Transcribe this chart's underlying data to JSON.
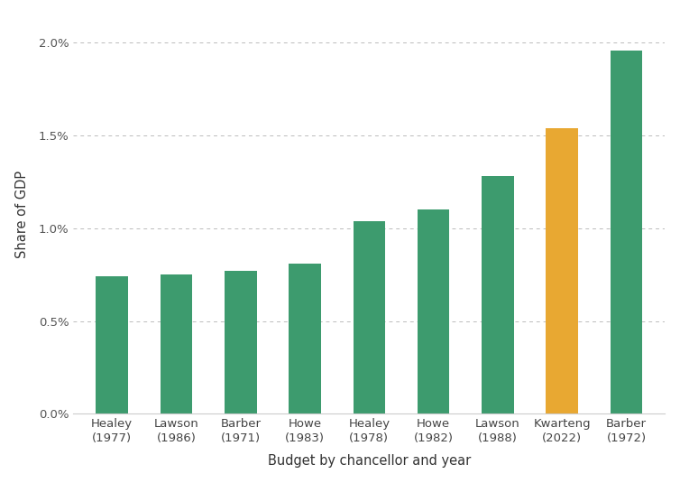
{
  "categories": [
    "Healey\n(1977)",
    "Lawson\n(1986)",
    "Barber\n(1971)",
    "Howe\n(1983)",
    "Healey\n(1978)",
    "Howe\n(1982)",
    "Lawson\n(1988)",
    "Kwarteng\n(2022)",
    "Barber\n(1972)"
  ],
  "values": [
    0.0074,
    0.0075,
    0.0077,
    0.0081,
    0.0104,
    0.011,
    0.0128,
    0.0154,
    0.0196
  ],
  "bar_colors": [
    "#3d9b6e",
    "#3d9b6e",
    "#3d9b6e",
    "#3d9b6e",
    "#3d9b6e",
    "#3d9b6e",
    "#3d9b6e",
    "#e8a832",
    "#3d9b6e"
  ],
  "xlabel": "Budget by chancellor and year",
  "ylabel": "Share of GDP",
  "ylim": [
    0,
    0.0215
  ],
  "yticks": [
    0.0,
    0.005,
    0.01,
    0.015,
    0.02
  ],
  "ytick_labels": [
    "0.0%",
    "0.5%",
    "1.0%",
    "1.5%",
    "2.0%"
  ],
  "background_color": "#ffffff",
  "grid_color": "#bbbbbb",
  "bar_width": 0.5,
  "label_fontsize": 10.5,
  "tick_fontsize": 9.5
}
